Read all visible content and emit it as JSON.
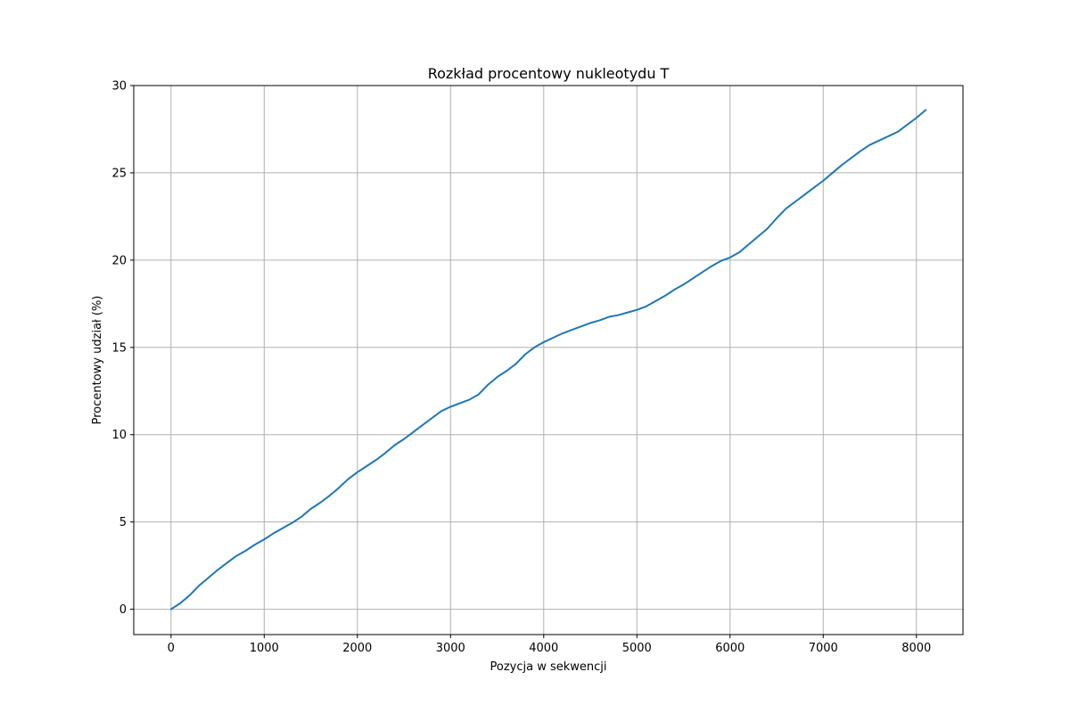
{
  "chart_data": {
    "type": "line",
    "title": "Rozkład procentowy nukleotydu T",
    "xlabel": "Pozycja w sekwencji",
    "ylabel": "Procentowy udział (%)",
    "xlim": [
      -400,
      8500
    ],
    "ylim": [
      -1.45,
      30
    ],
    "x_ticks": [
      0,
      1000,
      2000,
      3000,
      4000,
      5000,
      6000,
      7000,
      8000
    ],
    "y_ticks": [
      0,
      5,
      10,
      15,
      20,
      25,
      30
    ],
    "grid": true,
    "series": [
      {
        "color": "#1f77b4",
        "x": [
          0,
          100,
          200,
          300,
          400,
          500,
          600,
          700,
          800,
          900,
          1000,
          1100,
          1200,
          1300,
          1400,
          1500,
          1600,
          1700,
          1800,
          1900,
          2000,
          2100,
          2200,
          2300,
          2400,
          2500,
          2600,
          2700,
          2800,
          2900,
          3000,
          3100,
          3200,
          3300,
          3400,
          3500,
          3600,
          3700,
          3800,
          3900,
          4000,
          4100,
          4200,
          4300,
          4400,
          4500,
          4600,
          4700,
          4800,
          4900,
          5000,
          5100,
          5200,
          5300,
          5400,
          5500,
          5600,
          5700,
          5800,
          5900,
          6000,
          6100,
          6200,
          6300,
          6400,
          6500,
          6600,
          6700,
          6800,
          6900,
          7000,
          7100,
          7200,
          7300,
          7400,
          7500,
          7600,
          7700,
          7800,
          7900,
          8000,
          8100
        ],
        "y": [
          0.0,
          0.35,
          0.8,
          1.35,
          1.8,
          2.25,
          2.65,
          3.05,
          3.35,
          3.7,
          4.0,
          4.35,
          4.65,
          4.95,
          5.3,
          5.75,
          6.1,
          6.5,
          6.95,
          7.45,
          7.85,
          8.2,
          8.55,
          8.95,
          9.4,
          9.75,
          10.15,
          10.55,
          10.95,
          11.35,
          11.6,
          11.8,
          12.0,
          12.3,
          12.85,
          13.3,
          13.65,
          14.05,
          14.6,
          15.0,
          15.3,
          15.55,
          15.8,
          16.0,
          16.2,
          16.4,
          16.55,
          16.75,
          16.85,
          17.0,
          17.15,
          17.35,
          17.65,
          17.95,
          18.3,
          18.6,
          18.95,
          19.3,
          19.65,
          19.95,
          20.15,
          20.45,
          20.9,
          21.35,
          21.8,
          22.4,
          22.95,
          23.35,
          23.75,
          24.15,
          24.55,
          25.0,
          25.45,
          25.85,
          26.25,
          26.6,
          26.85,
          27.1,
          27.35,
          27.75,
          28.15,
          28.6
        ]
      }
    ]
  }
}
